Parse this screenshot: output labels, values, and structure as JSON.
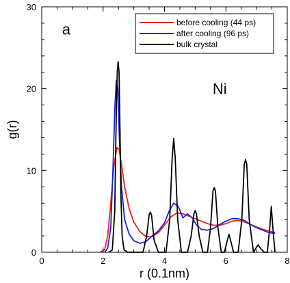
{
  "chart_data": {
    "type": "line",
    "xlabel": "r (0.1nm)",
    "ylabel": "g(r)",
    "xlim": [
      0,
      8
    ],
    "ylim": [
      0,
      30
    ],
    "xticks": [
      0,
      2,
      4,
      6,
      8
    ],
    "yticks": [
      0,
      10,
      20,
      30
    ],
    "grid": false,
    "legend_position": "top-right",
    "annotations": [
      {
        "text": "a",
        "x": 0.8,
        "y": 27.3
      },
      {
        "text": "Ni",
        "x": 5.8,
        "y": 20.0
      }
    ],
    "series": [
      {
        "name": "before cooling (44 ps)",
        "color": "#e8211a",
        "x": [
          1.9,
          2.05,
          2.15,
          2.25,
          2.35,
          2.45,
          2.52,
          2.6,
          2.7,
          2.85,
          3.0,
          3.2,
          3.4,
          3.6,
          3.8,
          4.0,
          4.2,
          4.4,
          4.6,
          4.8,
          5.0,
          5.2,
          5.4,
          5.6,
          5.8,
          6.0,
          6.2,
          6.4,
          6.6,
          6.8,
          7.0,
          7.2,
          7.4,
          7.6
        ],
        "y": [
          0,
          0.3,
          2.0,
          6.0,
          10.5,
          12.8,
          12.6,
          10.8,
          8.0,
          5.3,
          3.7,
          2.5,
          1.9,
          1.9,
          2.4,
          3.3,
          4.3,
          4.8,
          4.7,
          4.4,
          4.1,
          3.8,
          3.5,
          3.3,
          3.3,
          3.5,
          3.8,
          3.9,
          3.7,
          3.4,
          3.1,
          2.8,
          2.6,
          2.4
        ]
      },
      {
        "name": "after cooling (96 ps)",
        "color": "#1a22d6",
        "x": [
          2.05,
          2.15,
          2.25,
          2.32,
          2.38,
          2.43,
          2.48,
          2.53,
          2.6,
          2.7,
          2.85,
          3.0,
          3.2,
          3.4,
          3.6,
          3.8,
          4.0,
          4.15,
          4.3,
          4.45,
          4.6,
          4.75,
          4.9,
          5.05,
          5.2,
          5.4,
          5.6,
          5.8,
          6.0,
          6.2,
          6.4,
          6.6,
          6.8,
          7.0,
          7.2,
          7.4,
          7.6
        ],
        "y": [
          0,
          0.5,
          3.0,
          10.0,
          17.5,
          21.0,
          20.0,
          14.0,
          8.0,
          4.0,
          2.2,
          1.4,
          1.1,
          1.3,
          2.0,
          2.6,
          3.6,
          5.0,
          6.0,
          5.6,
          4.2,
          4.7,
          4.2,
          3.3,
          2.8,
          2.7,
          2.9,
          3.4,
          3.8,
          4.1,
          4.1,
          3.9,
          3.4,
          3.0,
          2.7,
          2.4,
          2.3
        ]
      },
      {
        "name": "bulk crystal",
        "color": "#000000",
        "x": [
          2.2,
          2.3,
          2.38,
          2.42,
          2.46,
          2.49,
          2.52,
          2.55,
          2.58,
          2.62,
          2.68,
          2.8,
          3.3,
          3.42,
          3.5,
          3.54,
          3.58,
          3.66,
          3.8,
          4.05,
          4.17,
          4.25,
          4.3,
          4.35,
          4.43,
          4.55,
          4.75,
          4.87,
          4.96,
          5.0,
          5.04,
          5.13,
          5.25,
          5.4,
          5.5,
          5.58,
          5.62,
          5.66,
          5.74,
          5.85,
          5.95,
          6.05,
          6.1,
          6.15,
          6.25,
          6.4,
          6.52,
          6.6,
          6.64,
          6.68,
          6.76,
          6.9,
          6.98,
          7.05,
          7.12,
          7.25,
          7.35,
          7.43,
          7.48,
          7.53,
          7.6
        ],
        "y": [
          0,
          0.3,
          5.0,
          15.0,
          22.0,
          23.3,
          22.0,
          15.0,
          7.0,
          2.0,
          0.3,
          0,
          0,
          2.0,
          4.6,
          4.9,
          4.5,
          1.5,
          0,
          0,
          4.0,
          11.5,
          13.9,
          11.5,
          4.0,
          0,
          0,
          2.0,
          4.7,
          5.1,
          4.7,
          2.0,
          0,
          0,
          3.0,
          7.5,
          7.9,
          7.5,
          3.0,
          0,
          0,
          1.5,
          2.2,
          1.5,
          0,
          0,
          4.0,
          10.8,
          11.3,
          10.8,
          4.0,
          0,
          0.5,
          0.9,
          0.5,
          0,
          0,
          3.0,
          5.6,
          3.0,
          0
        ]
      }
    ]
  }
}
